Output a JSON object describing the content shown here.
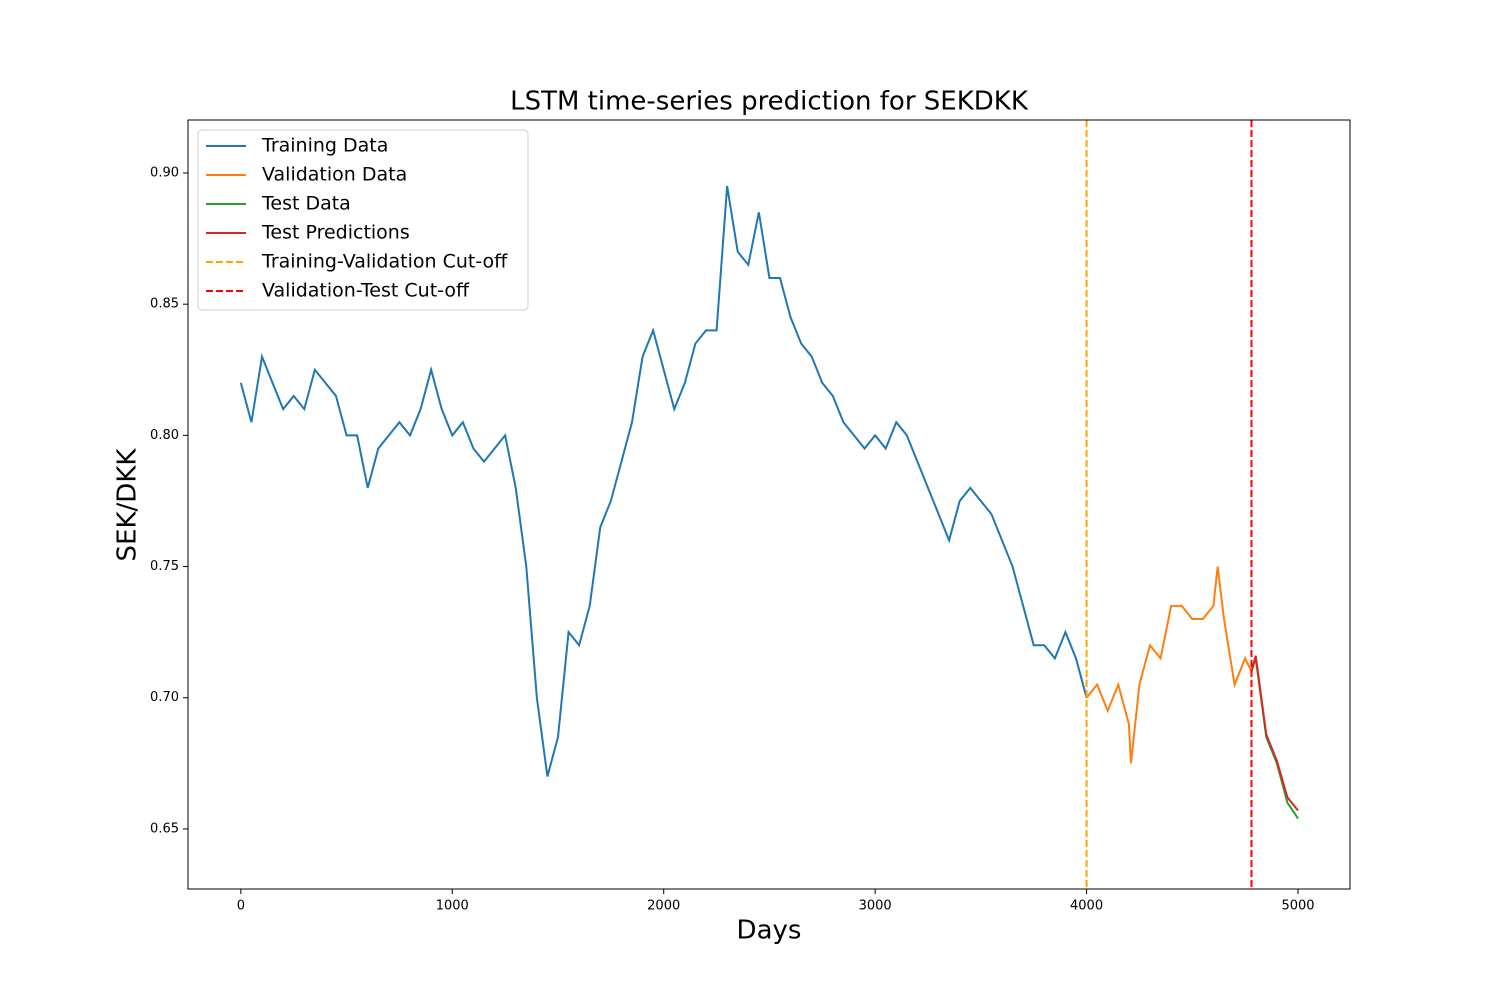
{
  "chart_data": {
    "type": "line",
    "title": "LSTM time-series prediction for SEKDKK",
    "xlabel": "Days",
    "ylabel": "SEK/DKK",
    "xlim": [
      -250,
      5246
    ],
    "ylim": [
      0.6271,
      0.9202
    ],
    "xticks": [
      0,
      1000,
      2000,
      3000,
      4000,
      5000
    ],
    "yticks": [
      0.65,
      {
        "value": 0.7,
        "label": "0.70"
      },
      0.75,
      {
        "value": 0.8,
        "label": "0.80"
      },
      0.85,
      {
        "value": 0.9,
        "label": "0.90"
      }
    ],
    "legend": "upper left",
    "series": [
      {
        "name": "Training Data",
        "color": "#1f77b4",
        "x": [
          0,
          50,
          100,
          150,
          200,
          250,
          300,
          350,
          400,
          450,
          500,
          550,
          600,
          650,
          700,
          750,
          800,
          850,
          900,
          950,
          1000,
          1050,
          1100,
          1150,
          1200,
          1250,
          1300,
          1350,
          1400,
          1450,
          1500,
          1550,
          1600,
          1650,
          1700,
          1750,
          1800,
          1850,
          1900,
          1950,
          2000,
          2050,
          2100,
          2150,
          2200,
          2250,
          2300,
          2350,
          2400,
          2450,
          2500,
          2550,
          2600,
          2650,
          2700,
          2750,
          2800,
          2850,
          2900,
          2950,
          3000,
          3050,
          3100,
          3150,
          3200,
          3250,
          3300,
          3350,
          3400,
          3450,
          3500,
          3550,
          3600,
          3650,
          3700,
          3750,
          3800,
          3850,
          3900,
          3950,
          4000
        ],
        "values": [
          0.82,
          0.805,
          0.83,
          0.82,
          0.81,
          0.815,
          0.81,
          0.825,
          0.82,
          0.815,
          0.8,
          0.8,
          0.78,
          0.795,
          0.8,
          0.805,
          0.8,
          0.81,
          0.825,
          0.81,
          0.8,
          0.805,
          0.795,
          0.79,
          0.795,
          0.8,
          0.78,
          0.75,
          0.7,
          0.67,
          0.685,
          0.725,
          0.72,
          0.735,
          0.765,
          0.775,
          0.79,
          0.805,
          0.83,
          0.84,
          0.825,
          0.81,
          0.82,
          0.835,
          0.84,
          0.84,
          0.895,
          0.87,
          0.865,
          0.885,
          0.86,
          0.86,
          0.845,
          0.835,
          0.83,
          0.82,
          0.815,
          0.805,
          0.8,
          0.795,
          0.8,
          0.795,
          0.805,
          0.8,
          0.79,
          0.78,
          0.77,
          0.76,
          0.775,
          0.78,
          0.775,
          0.77,
          0.76,
          0.75,
          0.735,
          0.72,
          0.72,
          0.715,
          0.725,
          0.715,
          0.7
        ]
      },
      {
        "name": "Validation Data",
        "color": "#ff7f0e",
        "x": [
          4000,
          4050,
          4100,
          4150,
          4200,
          4210,
          4250,
          4300,
          4350,
          4400,
          4450,
          4500,
          4550,
          4600,
          4620,
          4650,
          4700,
          4750,
          4780
        ],
        "values": [
          0.7,
          0.705,
          0.695,
          0.705,
          0.69,
          0.675,
          0.705,
          0.72,
          0.715,
          0.735,
          0.735,
          0.73,
          0.73,
          0.735,
          0.75,
          0.73,
          0.705,
          0.715,
          0.71
        ]
      },
      {
        "name": "Test Data",
        "color": "#2ca02c",
        "x": [
          4780,
          4800,
          4850,
          4900,
          4950,
          5000
        ],
        "values": [
          0.71,
          0.715,
          0.685,
          0.675,
          0.66,
          0.654
        ]
      },
      {
        "name": "Test Predictions",
        "color": "#d62728",
        "x": [
          4780,
          4800,
          4850,
          4900,
          4950,
          5000
        ],
        "values": [
          0.71,
          0.716,
          0.686,
          0.676,
          0.662,
          0.657
        ]
      }
    ],
    "vlines": [
      {
        "name": "Training-Validation Cut-off",
        "color": "#ffa500",
        "x": 4000
      },
      {
        "name": "Validation-Test Cut-off",
        "color": "#ff0000",
        "x": 4780
      }
    ]
  }
}
